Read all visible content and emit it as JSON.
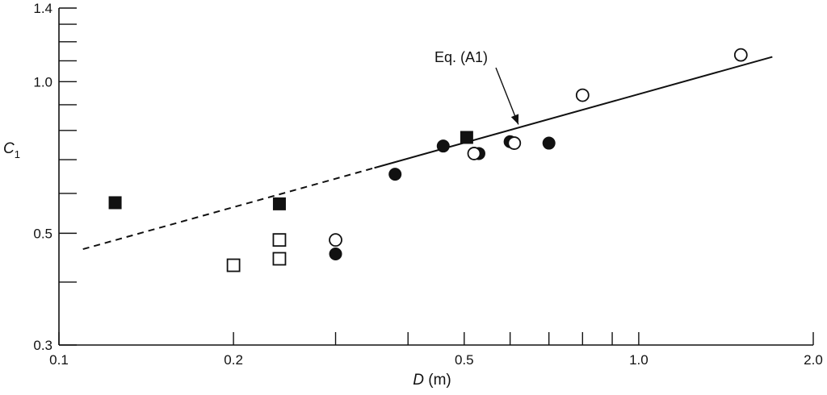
{
  "chart_data": {
    "type": "scatter",
    "x_scale": "log",
    "y_scale": "log",
    "xlim": [
      0.1,
      2.0
    ],
    "ylim": [
      0.3,
      1.4
    ],
    "x_ticks_labeled": [
      "0.1",
      "0.2",
      "0.5",
      "1.0",
      "2.0"
    ],
    "x_ticks_labeled_values": [
      0.1,
      0.2,
      0.5,
      1.0,
      2.0
    ],
    "x_ticks_minor": [
      0.3,
      0.4,
      0.6,
      0.7,
      0.8,
      0.9
    ],
    "y_ticks_labeled": [
      "0.3",
      "0.5",
      "1.0",
      "1.4"
    ],
    "y_ticks_labeled_values": [
      0.3,
      0.5,
      1.0,
      1.4
    ],
    "y_ticks_minor": [
      0.4,
      0.6,
      0.7,
      0.8,
      0.9,
      1.1,
      1.2,
      1.3
    ],
    "xlabel_italic": "D",
    "xlabel_rest": " (m)",
    "ylabel_main": "C",
    "ylabel_sub": "1",
    "grid": false,
    "fit_line": {
      "label": "Eq. (A1)",
      "x": [
        0.11,
        1.7
      ],
      "y": [
        0.465,
        1.12
      ],
      "dashed_until_x": 0.35
    },
    "series": [
      {
        "marker": "filled-circle",
        "x": [
          0.3,
          0.38,
          0.46,
          0.53,
          0.6,
          0.7
        ],
        "y": [
          0.455,
          0.655,
          0.745,
          0.72,
          0.76,
          0.755
        ]
      },
      {
        "marker": "open-circle",
        "x": [
          0.3,
          0.52,
          0.61,
          0.8,
          1.5
        ],
        "y": [
          0.485,
          0.72,
          0.755,
          0.94,
          1.13
        ]
      },
      {
        "marker": "filled-square",
        "x": [
          0.125,
          0.24,
          0.505
        ],
        "y": [
          0.575,
          0.572,
          0.775
        ]
      },
      {
        "marker": "open-square",
        "x": [
          0.2,
          0.24,
          0.24
        ],
        "y": [
          0.432,
          0.445,
          0.485
        ]
      }
    ]
  }
}
